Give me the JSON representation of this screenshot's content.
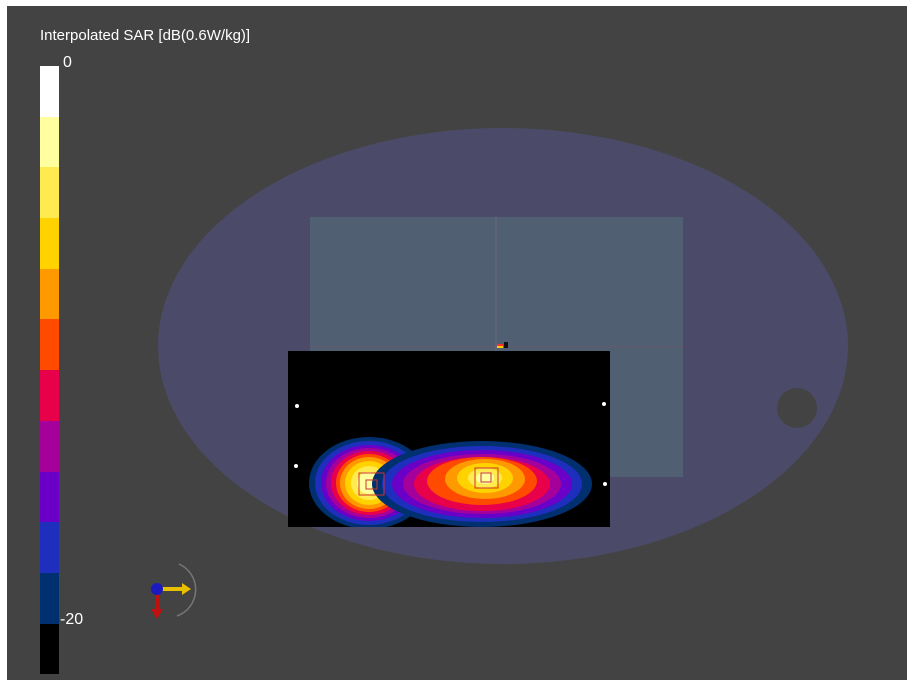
{
  "legend": {
    "title": "Interpolated SAR [dB(0.6W/kg)]",
    "max_label": "0",
    "min_label": "-20",
    "colors": [
      "#ffffff",
      "#ffffa0",
      "#ffeb50",
      "#ffd200",
      "#ff9900",
      "#ff4a00",
      "#e8004a",
      "#a5009a",
      "#6a00c8",
      "#1e2fbe",
      "#003070",
      "#000000"
    ]
  },
  "scene": {
    "phantom_color": "#4b4b69",
    "device_color": "#505f71",
    "sar_map_background": "#000000",
    "axes_icon": "coordinate-axes-icon"
  }
}
